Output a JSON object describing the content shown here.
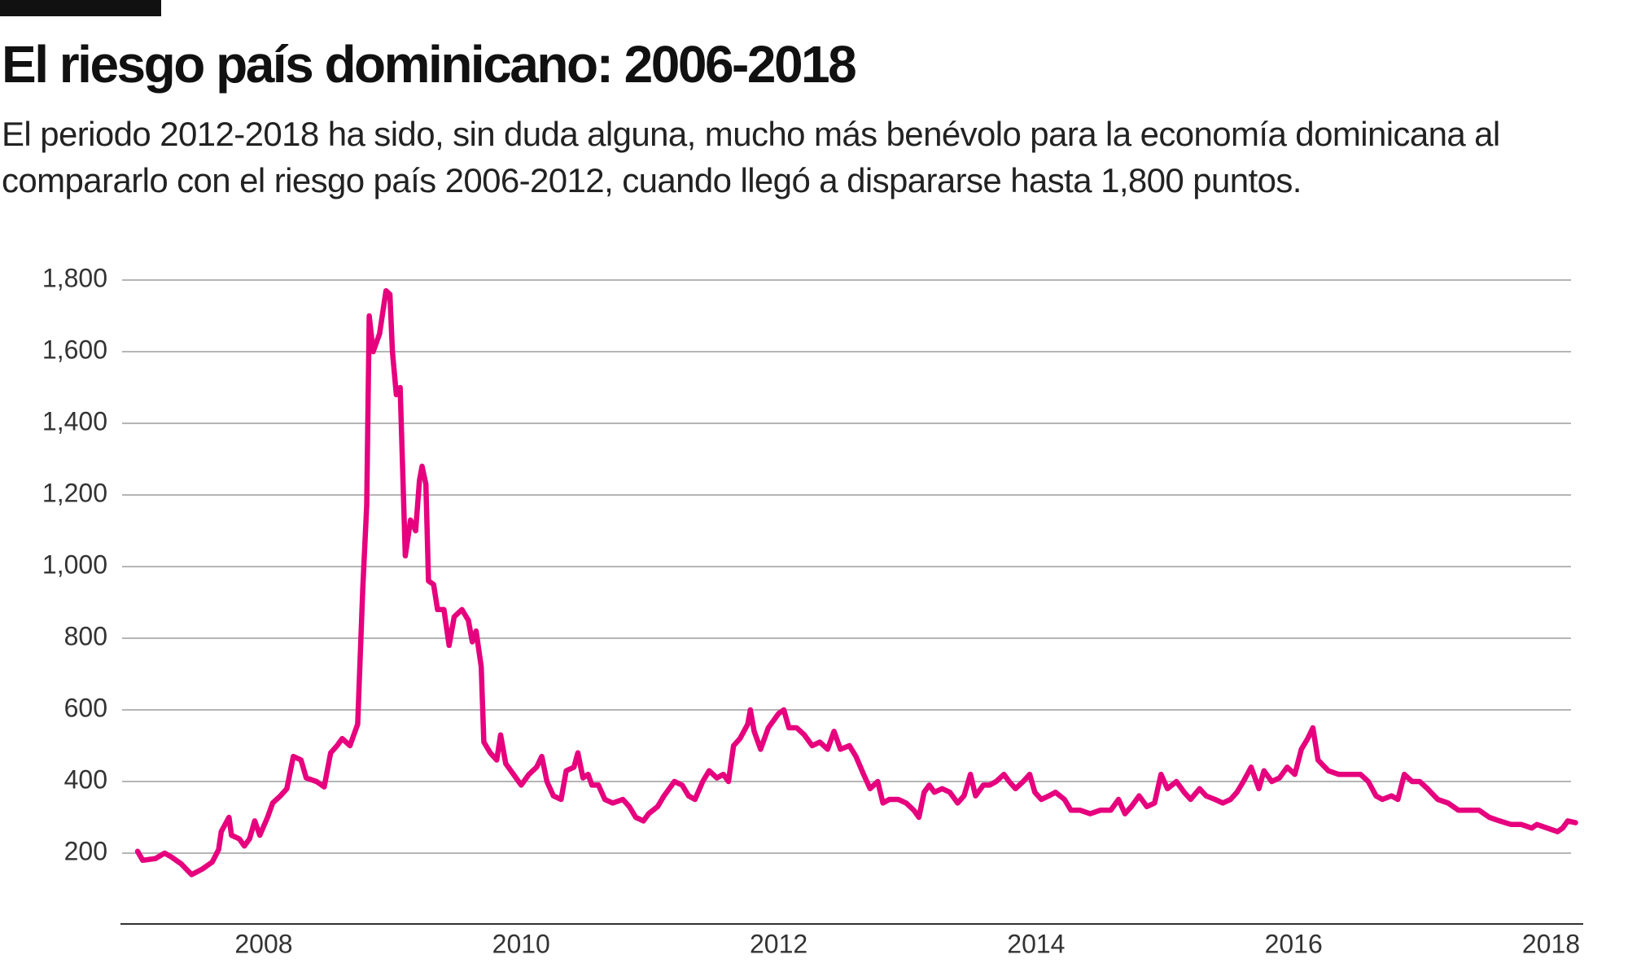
{
  "chart_data": {
    "type": "line",
    "title": "El riesgo país dominicano: 2006-2018",
    "subtitle": "El periodo 2012-2018 ha sido, sin duda alguna, mucho más benévolo para la economía dominicana al compararlo con el riesgo país 2006-2012, cuando llegó a dispararse hasta 1,800 puntos.",
    "color": "#e6007e",
    "grid": true,
    "xlim": [
      2006.9,
      2018.25
    ],
    "xticks": [
      2008,
      2010,
      2012,
      2014,
      2016,
      2018
    ],
    "ylim": [
      0,
      1800
    ],
    "yticks": [
      200,
      400,
      600,
      800,
      {
        "value": 1000,
        "label": "1,000"
      },
      {
        "value": 1200,
        "label": "1,200"
      },
      {
        "value": 1400,
        "label": "1,400"
      },
      {
        "value": 1600,
        "label": "1,600"
      },
      {
        "value": 1800,
        "label": "1,800"
      }
    ],
    "x": [
      2007.02,
      2007.06,
      2007.16,
      2007.23,
      2007.28,
      2007.36,
      2007.44,
      2007.52,
      2007.6,
      2007.65,
      2007.67,
      2007.73,
      2007.75,
      2007.81,
      2007.85,
      2007.89,
      2007.93,
      2007.97,
      2008.03,
      2008.07,
      2008.13,
      2008.18,
      2008.23,
      2008.29,
      2008.33,
      2008.41,
      2008.47,
      2008.52,
      2008.57,
      2008.61,
      2008.67,
      2008.73,
      2008.77,
      2008.8,
      2008.82,
      2008.85,
      2008.9,
      2008.95,
      2008.98,
      2009,
      2009.03,
      2009.06,
      2009.1,
      2009.14,
      2009.18,
      2009.21,
      2009.23,
      2009.26,
      2009.28,
      2009.32,
      2009.35,
      2009.4,
      2009.44,
      2009.48,
      2009.54,
      2009.59,
      2009.62,
      2009.65,
      2009.69,
      2009.71,
      2009.76,
      2009.81,
      2009.84,
      2009.88,
      2009.94,
      2010,
      2010.06,
      2010.12,
      2010.16,
      2010.2,
      2010.25,
      2010.31,
      2010.35,
      2010.41,
      2010.44,
      2010.48,
      2010.52,
      2010.55,
      2010.6,
      2010.65,
      2010.71,
      2010.79,
      2010.84,
      2010.89,
      2010.95,
      2010.99,
      2011.06,
      2011.11,
      2011.19,
      2011.25,
      2011.3,
      2011.35,
      2011.41,
      2011.46,
      2011.52,
      2011.57,
      2011.61,
      2011.65,
      2011.7,
      2011.76,
      2011.78,
      2011.81,
      2011.86,
      2011.92,
      2012,
      2012.04,
      2012.08,
      2012.14,
      2012.2,
      2012.26,
      2012.32,
      2012.38,
      2012.43,
      2012.48,
      2012.55,
      2012.6,
      2012.66,
      2012.71,
      2012.77,
      2012.81,
      2012.86,
      2012.93,
      2012.99,
      2013.05,
      2013.09,
      2013.13,
      2013.17,
      2013.21,
      2013.27,
      2013.33,
      2013.39,
      2013.44,
      2013.49,
      2013.53,
      2013.59,
      2013.64,
      2013.69,
      2013.75,
      2013.79,
      2013.84,
      2013.9,
      2013.95,
      2013.99,
      2014.04,
      2014.1,
      2014.15,
      2014.22,
      2014.27,
      2014.34,
      2014.42,
      2014.5,
      2014.58,
      2014.64,
      2014.69,
      2014.74,
      2014.8,
      2014.86,
      2014.92,
      2014.97,
      2015.02,
      2015.09,
      2015.15,
      2015.2,
      2015.27,
      2015.32,
      2015.39,
      2015.45,
      2015.51,
      2015.56,
      2015.61,
      2015.67,
      2015.73,
      2015.77,
      2015.83,
      2015.89,
      2015.95,
      2016.01,
      2016.06,
      2016.11,
      2016.15,
      2016.19,
      2016.27,
      2016.35,
      2016.44,
      2016.52,
      2016.58,
      2016.64,
      2016.69,
      2016.76,
      2016.81,
      2016.86,
      2016.92,
      2016.98,
      2017.04,
      2017.12,
      2017.2,
      2017.28,
      2017.36,
      2017.44,
      2017.52,
      2017.6,
      2017.69,
      2017.77,
      2017.85,
      2017.89,
      2017.97,
      2018.05,
      2018.09,
      2018.13,
      2018.19
    ],
    "values": [
      205,
      180,
      185,
      200,
      190,
      170,
      140,
      155,
      175,
      210,
      260,
      300,
      250,
      240,
      220,
      240,
      290,
      250,
      300,
      340,
      360,
      380,
      470,
      460,
      410,
      400,
      385,
      480,
      500,
      520,
      500,
      560,
      940,
      1170,
      1700,
      1600,
      1650,
      1770,
      1760,
      1600,
      1480,
      1500,
      1030,
      1130,
      1100,
      1240,
      1280,
      1230,
      960,
      950,
      880,
      880,
      780,
      860,
      880,
      850,
      790,
      820,
      720,
      510,
      480,
      460,
      530,
      450,
      420,
      390,
      420,
      440,
      470,
      400,
      360,
      350,
      430,
      440,
      480,
      410,
      420,
      390,
      390,
      350,
      340,
      350,
      330,
      300,
      290,
      310,
      330,
      360,
      400,
      390,
      360,
      350,
      400,
      430,
      410,
      420,
      400,
      500,
      520,
      560,
      600,
      540,
      490,
      550,
      590,
      600,
      550,
      550,
      530,
      500,
      510,
      490,
      540,
      490,
      500,
      470,
      420,
      380,
      400,
      340,
      350,
      350,
      340,
      320,
      300,
      370,
      390,
      370,
      380,
      370,
      340,
      360,
      420,
      360,
      390,
      390,
      400,
      420,
      400,
      380,
      400,
      420,
      370,
      350,
      360,
      370,
      350,
      320,
      320,
      310,
      320,
      320,
      350,
      310,
      330,
      360,
      330,
      340,
      420,
      380,
      400,
      370,
      350,
      380,
      360,
      350,
      340,
      350,
      370,
      400,
      440,
      380,
      430,
      400,
      410,
      440,
      420,
      490,
      520,
      550,
      460,
      430,
      420,
      420,
      420,
      400,
      360,
      350,
      360,
      350,
      420,
      400,
      400,
      380,
      350,
      340,
      320,
      320,
      320,
      300,
      290,
      280,
      280,
      270,
      280,
      270,
      260,
      270,
      290,
      285
    ]
  }
}
